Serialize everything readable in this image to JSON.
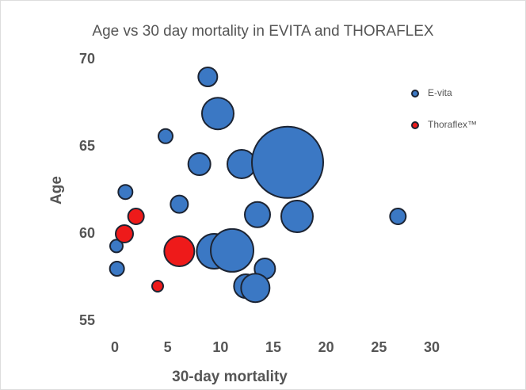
{
  "chart_data": {
    "type": "bubble",
    "title": "Age vs 30 day mortality in EVITA and THORAFLEX",
    "x_label": "30-day mortality",
    "y_label": "Age",
    "xlim": [
      0,
      30
    ],
    "xticks": [
      0,
      5,
      10,
      15,
      20,
      25,
      30
    ],
    "ylim": [
      55,
      70
    ],
    "yticks": [
      55,
      60,
      65,
      70
    ],
    "legend": "right",
    "series": [
      {
        "name": "E-vita",
        "color": "#3b78c4",
        "x": [
          8.8,
          9.75,
          4.8,
          8.0,
          12.0,
          16.35,
          1.0,
          6.1,
          13.5,
          17.25,
          26.8,
          0.15,
          0.2,
          9.4,
          11.1,
          14.2,
          12.4,
          13.3
        ],
        "values": [
          69.0,
          66.9,
          65.6,
          64.0,
          64.0,
          64.1,
          62.4,
          61.7,
          61.1,
          61.0,
          61.0,
          59.3,
          58.0,
          59.0,
          59.05,
          58.0,
          57.0,
          56.9
        ],
        "sizes": [
          12,
          20,
          9,
          14,
          18,
          45,
          9,
          11,
          16,
          20,
          10,
          8,
          9,
          22,
          27,
          13,
          15,
          18
        ]
      },
      {
        "name": "Thoraflex™",
        "color": "#ee1a1a",
        "x": [
          2.0,
          0.9,
          6.1,
          4.05
        ],
        "values": [
          61.0,
          60.0,
          59.0,
          57.0
        ],
        "sizes": [
          10,
          11,
          19,
          7
        ]
      }
    ]
  }
}
